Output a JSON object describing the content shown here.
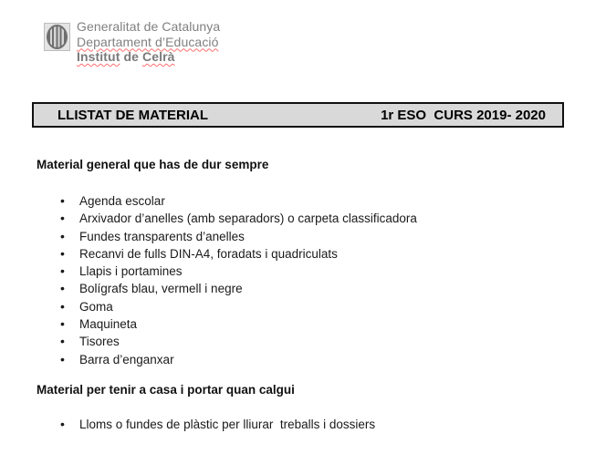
{
  "header": {
    "logo": "generalitat-senyera-emblem",
    "line1": "Generalitat de Catalunya",
    "line2": "Departament d’Educació",
    "line3": {
      "word1": "Institut",
      "word2": " de ",
      "word3": "Celrà"
    }
  },
  "title_bar": {
    "left": "LLISTAT DE MATERIAL",
    "right": "1r ESO  CURS 2019- 2020"
  },
  "sections": [
    {
      "heading": "Material general que has de dur sempre",
      "items": [
        "Agenda escolar",
        "Arxivador d’anelles (amb separadors) o carpeta classificadora",
        "Fundes transparents d’anelles",
        "Recanvi de fulls DIN-A4, foradats i quadriculats",
        "Llapis i portamines",
        "Bolígrafs blau, vermell i negre",
        "Goma",
        "Maquineta",
        "Tisores",
        "Barra d’enganxar"
      ]
    },
    {
      "heading": "Material per tenir a casa i portar quan calgui",
      "items": [
        "Lloms o fundes de plàstic per lliurar  treballs i dossiers"
      ]
    }
  ],
  "colors": {
    "header_text": "#808080",
    "title_bar_bg": "#d9d9d9",
    "title_bar_border": "#000000",
    "body_text": "#1a1a1a",
    "spellcheck_underline": "#ff6f6f",
    "page_background": "#ffffff"
  }
}
